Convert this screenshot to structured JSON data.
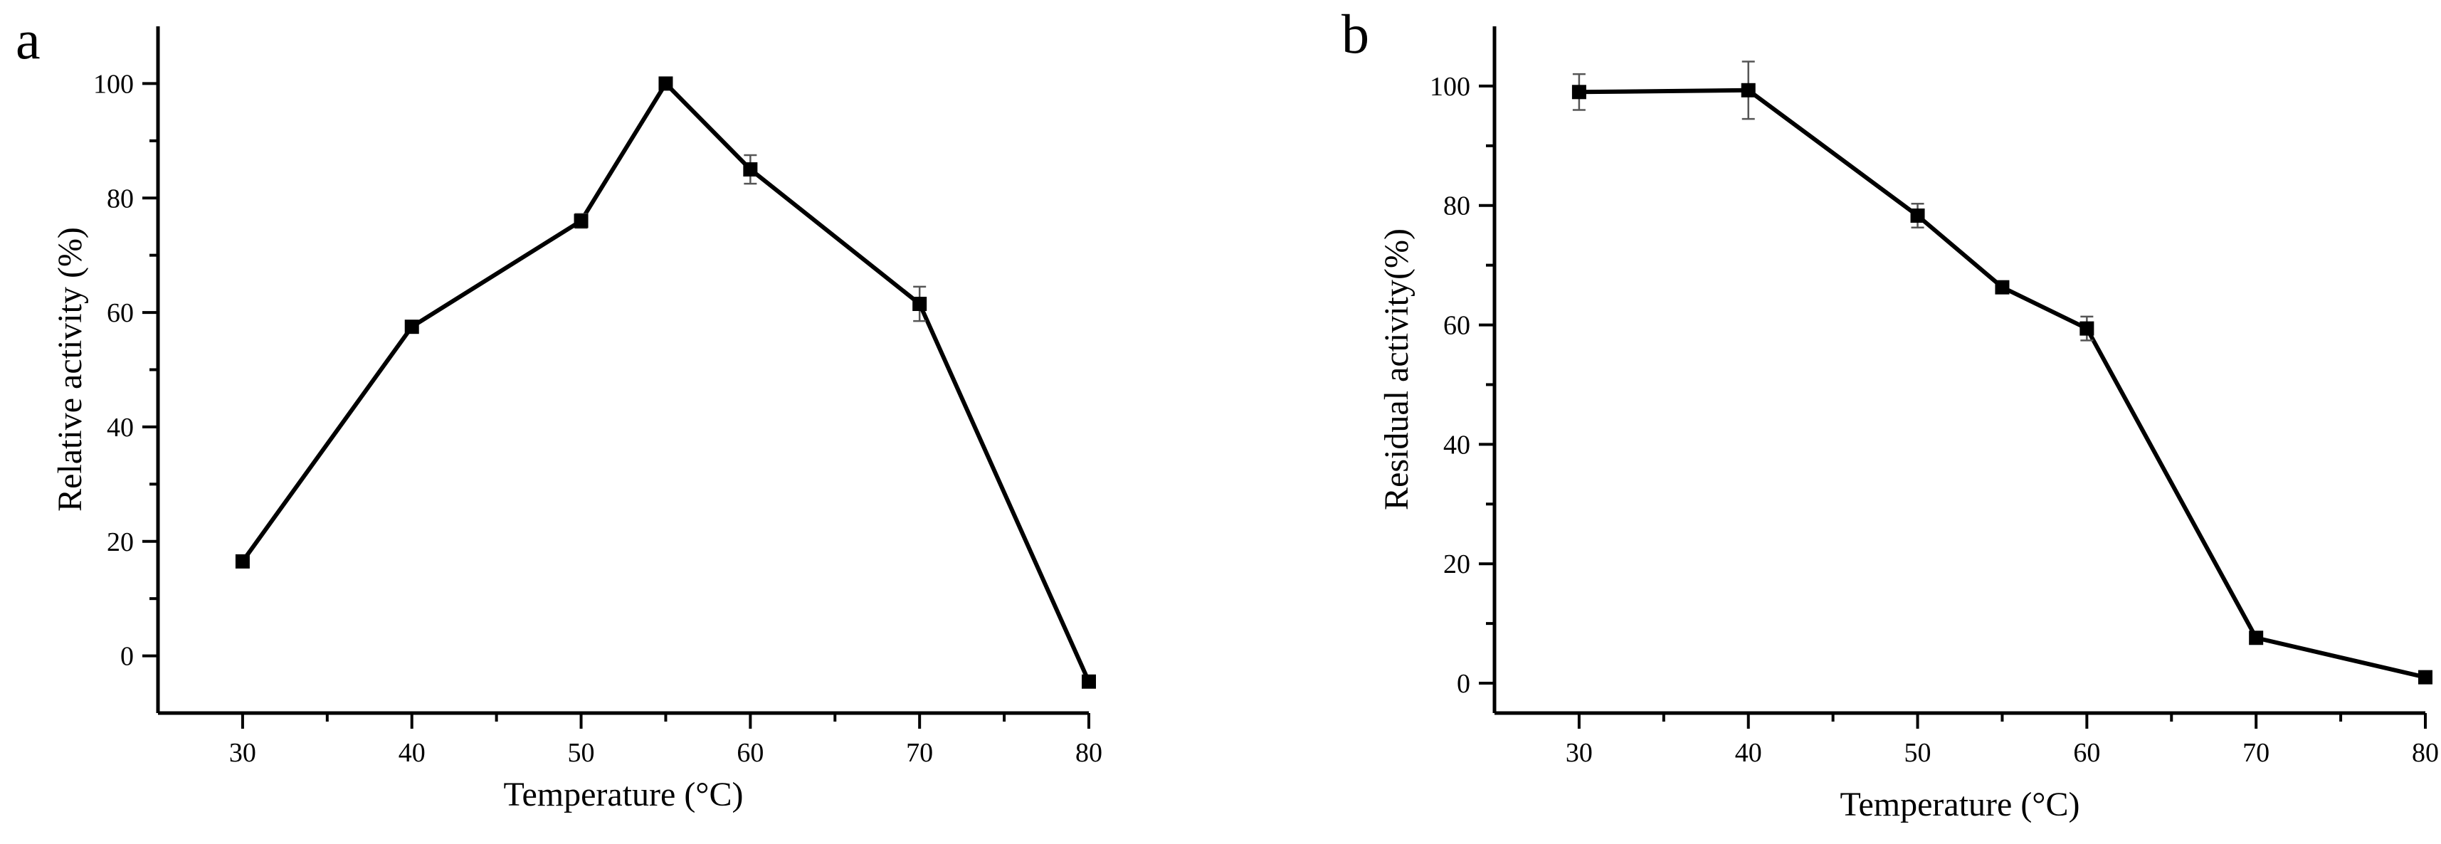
{
  "chart_data": [
    {
      "panel": "a",
      "type": "line",
      "xlabel": "Temperature (°C)",
      "ylabel": "Relative activity (%)",
      "xlim": [
        25,
        80
      ],
      "ylim": [
        -10,
        110
      ],
      "xticks": [
        30,
        40,
        50,
        60,
        70,
        80
      ],
      "yticks": [
        0,
        20,
        40,
        60,
        80,
        100
      ],
      "grid": false,
      "series": [
        {
          "x": [
            30,
            40,
            50,
            55,
            60,
            70,
            80
          ],
          "y": [
            16.5,
            57.5,
            76,
            100,
            85,
            61.5,
            -4.5
          ],
          "error": [
            0.5,
            0.6,
            1.2,
            0.5,
            2.5,
            3.0,
            0.5
          ]
        }
      ]
    },
    {
      "panel": "b",
      "type": "line",
      "xlabel": "Temperature (°C)",
      "ylabel": "Residual activity(%)",
      "xlim": [
        25,
        80
      ],
      "ylim": [
        -5,
        110
      ],
      "xticks": [
        30,
        40,
        50,
        60,
        70,
        80
      ],
      "yticks": [
        0,
        20,
        40,
        60,
        80,
        100
      ],
      "grid": false,
      "series": [
        {
          "x": [
            30,
            40,
            50,
            55,
            60,
            70,
            80
          ],
          "y": [
            99,
            99.3,
            78.3,
            66.3,
            59.4,
            7.6,
            1
          ],
          "error": [
            3.0,
            4.8,
            2.0,
            0.5,
            2.0,
            0.6,
            0.3
          ]
        }
      ]
    }
  ]
}
